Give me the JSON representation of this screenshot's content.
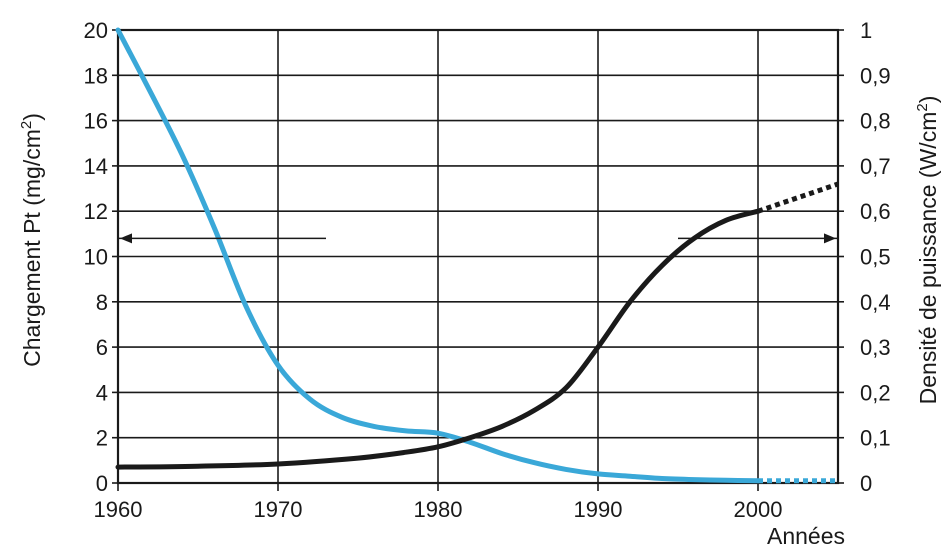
{
  "chart_data": {
    "type": "line",
    "x_label": "Années",
    "y_left_label_main": "Chargement Pt (mg/cm",
    "y_left_label_sup": "2",
    "y_left_label_tail": ")",
    "y_right_label_main": "Densité de puissance (W/cm",
    "y_right_label_sup": "2",
    "y_right_label_tail": ")",
    "x_range": [
      1960,
      2005
    ],
    "y_left_range": [
      0,
      20
    ],
    "y_right_range": [
      0,
      1
    ],
    "x_ticks": [
      "1960",
      "1970",
      "1980",
      "1990",
      "2000"
    ],
    "y_left_ticks": [
      "0",
      "2",
      "4",
      "6",
      "8",
      "10",
      "12",
      "14",
      "16",
      "18",
      "20"
    ],
    "y_right_ticks": [
      "0",
      "0,1",
      "0,2",
      "0,3",
      "0,4",
      "0,5",
      "0,6",
      "0,7",
      "0,8",
      "0,9",
      "1"
    ],
    "grid": true,
    "series": [
      {
        "axis": "left",
        "color": "#3aa8d8",
        "x": [
          1960,
          1962,
          1964,
          1966,
          1968,
          1970,
          1972,
          1974,
          1976,
          1978,
          1980,
          1982,
          1984,
          1986,
          1988,
          1990,
          1992,
          1994,
          1996,
          1998,
          2000
        ],
        "y": [
          20,
          17.3,
          14.5,
          11.3,
          7.8,
          5.2,
          3.7,
          2.9,
          2.5,
          2.3,
          2.2,
          1.8,
          1.3,
          0.9,
          0.6,
          0.4,
          0.3,
          0.2,
          0.15,
          0.12,
          0.1
        ],
        "projection_x": [
          2000,
          2005
        ],
        "projection_y": [
          0.1,
          0.1
        ]
      },
      {
        "axis": "right",
        "color": "#1a1a1a",
        "x": [
          1960,
          1965,
          1970,
          1975,
          1978,
          1980,
          1982,
          1984,
          1986,
          1988,
          1990,
          1992,
          1994,
          1996,
          1998,
          2000
        ],
        "y": [
          0.035,
          0.037,
          0.042,
          0.055,
          0.068,
          0.08,
          0.1,
          0.125,
          0.16,
          0.21,
          0.3,
          0.4,
          0.48,
          0.54,
          0.58,
          0.6
        ],
        "projection_x": [
          2000,
          2005
        ],
        "projection_y": [
          0.6,
          0.66
        ]
      }
    ],
    "arrows": [
      {
        "from_x": 1973,
        "to_x": 1960,
        "y_left": 10.8,
        "direction": "left"
      },
      {
        "from_x": 1995,
        "to_x": 2005,
        "y_left": 10.8,
        "direction": "right"
      }
    ]
  }
}
